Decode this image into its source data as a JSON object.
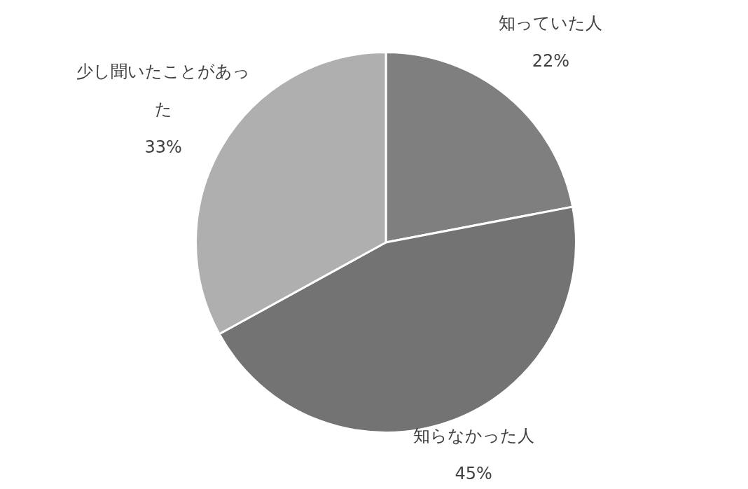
{
  "chart_data": {
    "type": "pie",
    "categories": [
      "知っていた人",
      "知らなかった人",
      "少し聞いたことがあった"
    ],
    "values": [
      22,
      45,
      33
    ],
    "colors": [
      "#7f7f7f",
      "#737373",
      "#afafaf"
    ],
    "value_labels": [
      "22%",
      "45%",
      "33%"
    ],
    "legend": false
  }
}
